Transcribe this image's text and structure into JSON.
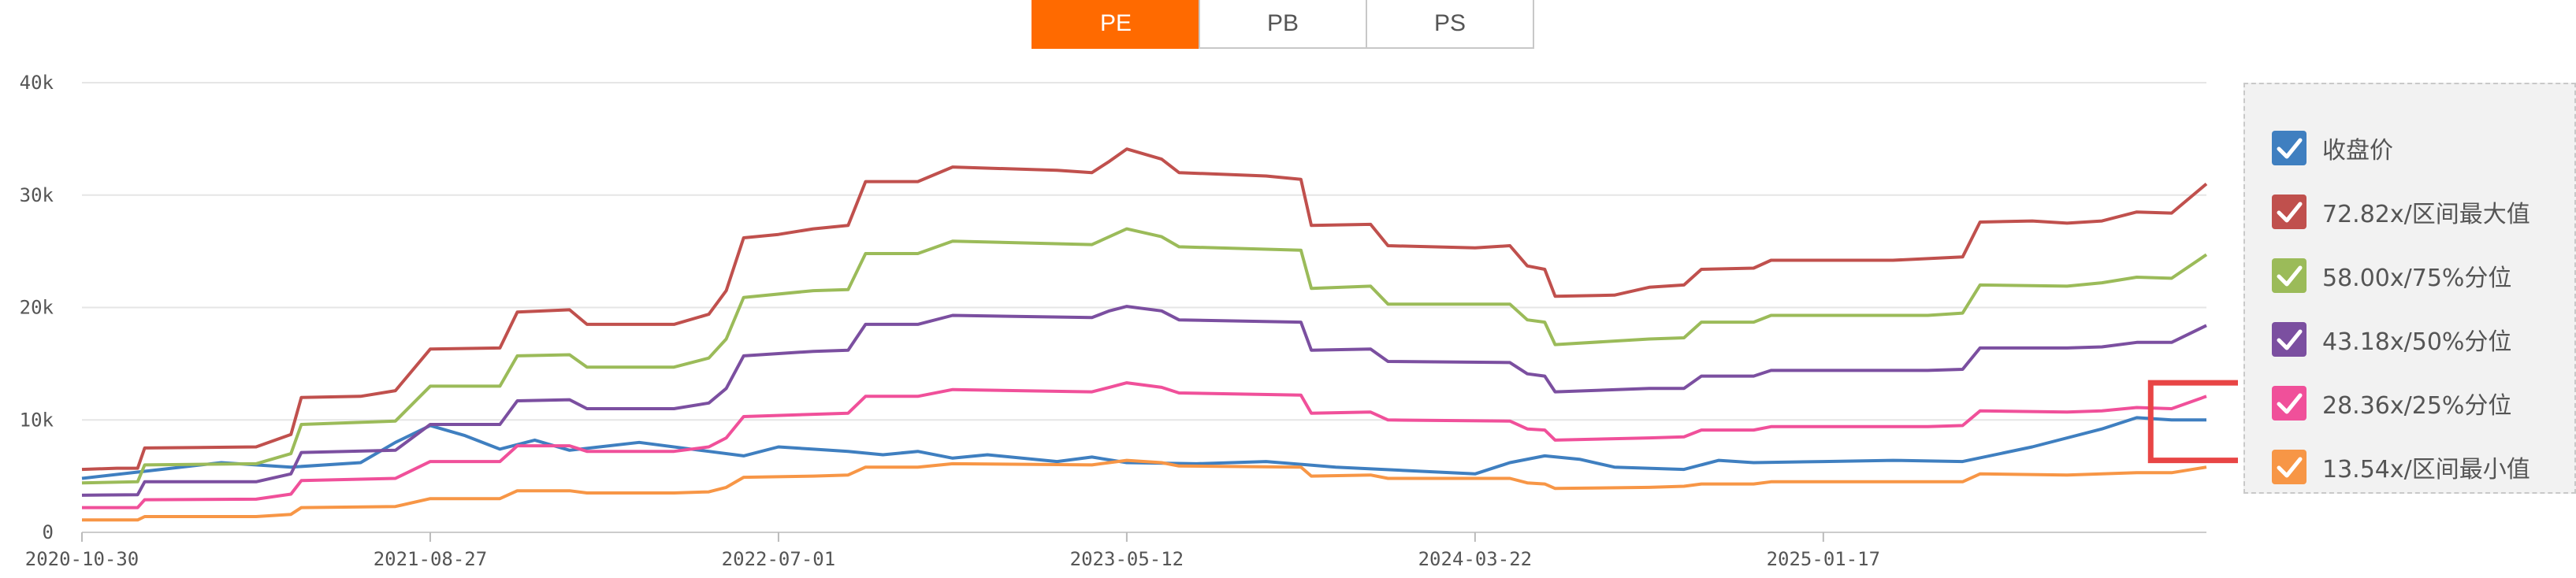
{
  "tabs": [
    {
      "label": "PE",
      "active": true
    },
    {
      "label": "PB",
      "active": false
    },
    {
      "label": "PS",
      "active": false
    }
  ],
  "legend": [
    {
      "label": "收盘价",
      "color": "#3f7fc0"
    },
    {
      "label": "72.82x/区间最大值",
      "color": "#c0504d"
    },
    {
      "label": "58.00x/75%分位",
      "color": "#9bbb59"
    },
    {
      "label": "43.18x/50%分位",
      "color": "#7b4fa0"
    },
    {
      "label": "28.36x/25%分位",
      "color": "#f0509a"
    },
    {
      "label": "13.54x/区间最小值",
      "color": "#f79646"
    }
  ],
  "highlight_color": "#e84545",
  "chart_data": {
    "type": "line",
    "x_ticks": [
      "2020-10-30",
      "2021-08-27",
      "2022-07-01",
      "2023-05-12",
      "2024-03-22",
      "2025-01-17"
    ],
    "y_ticks": [
      "0",
      "10k",
      "20k",
      "30k",
      "40k"
    ],
    "ylim": [
      0,
      40000
    ],
    "xlim_months": [
      0,
      61
    ],
    "x_tick_months": [
      0,
      10,
      20,
      30,
      40,
      50
    ],
    "grid": true,
    "legend_position": "right",
    "series": [
      {
        "name": "收盘价",
        "color": "#3f7fc0",
        "points": [
          [
            0,
            4800
          ],
          [
            2,
            5500
          ],
          [
            4,
            6200
          ],
          [
            6,
            5800
          ],
          [
            8,
            6200
          ],
          [
            9,
            8000
          ],
          [
            10,
            9500
          ],
          [
            11,
            8600
          ],
          [
            12,
            7400
          ],
          [
            13,
            8200
          ],
          [
            14,
            7300
          ],
          [
            16,
            8000
          ],
          [
            18,
            7200
          ],
          [
            19,
            6800
          ],
          [
            20,
            7600
          ],
          [
            21,
            7400
          ],
          [
            22,
            7200
          ],
          [
            23,
            6900
          ],
          [
            24,
            7200
          ],
          [
            25,
            6600
          ],
          [
            26,
            6900
          ],
          [
            28,
            6300
          ],
          [
            29,
            6700
          ],
          [
            30,
            6200
          ],
          [
            32,
            6100
          ],
          [
            34,
            6300
          ],
          [
            36,
            5800
          ],
          [
            38,
            5500
          ],
          [
            40,
            5200
          ],
          [
            41,
            6200
          ],
          [
            42,
            6800
          ],
          [
            43,
            6500
          ],
          [
            44,
            5800
          ],
          [
            46,
            5600
          ],
          [
            47,
            6400
          ],
          [
            48,
            6200
          ],
          [
            50,
            6300
          ],
          [
            52,
            6400
          ],
          [
            54,
            6300
          ],
          [
            56,
            7600
          ],
          [
            58,
            9200
          ],
          [
            59,
            10200
          ],
          [
            60,
            10000
          ],
          [
            61,
            10000
          ]
        ]
      },
      {
        "name": "72.82x/区间最大值",
        "color": "#c0504d",
        "points": [
          [
            0,
            5600
          ],
          [
            1,
            5700
          ],
          [
            1.6,
            5700
          ],
          [
            1.8,
            7500
          ],
          [
            5,
            7600
          ],
          [
            6,
            8700
          ],
          [
            6.3,
            12000
          ],
          [
            8,
            12100
          ],
          [
            9,
            12600
          ],
          [
            10,
            16300
          ],
          [
            12,
            16400
          ],
          [
            12.5,
            19600
          ],
          [
            14,
            19800
          ],
          [
            14.5,
            18500
          ],
          [
            17,
            18500
          ],
          [
            18,
            19400
          ],
          [
            18.5,
            21500
          ],
          [
            19,
            26200
          ],
          [
            20,
            26500
          ],
          [
            21,
            27000
          ],
          [
            22,
            27300
          ],
          [
            22.5,
            31200
          ],
          [
            24,
            31200
          ],
          [
            25,
            32500
          ],
          [
            28,
            32200
          ],
          [
            29,
            32000
          ],
          [
            29.5,
            33000
          ],
          [
            30,
            34100
          ],
          [
            31,
            33200
          ],
          [
            31.5,
            32000
          ],
          [
            34,
            31700
          ],
          [
            35,
            31400
          ],
          [
            35.3,
            27300
          ],
          [
            37,
            27400
          ],
          [
            37.5,
            25500
          ],
          [
            40,
            25300
          ],
          [
            41,
            25500
          ],
          [
            41.5,
            23700
          ],
          [
            42,
            23400
          ],
          [
            42.3,
            21000
          ],
          [
            44,
            21100
          ],
          [
            45,
            21800
          ],
          [
            46,
            22000
          ],
          [
            46.5,
            23400
          ],
          [
            48,
            23500
          ],
          [
            48.5,
            24200
          ],
          [
            52,
            24200
          ],
          [
            54,
            24500
          ],
          [
            54.5,
            27600
          ],
          [
            56,
            27700
          ],
          [
            57,
            27500
          ],
          [
            58,
            27700
          ],
          [
            59,
            28500
          ],
          [
            60,
            28400
          ],
          [
            61,
            31000
          ]
        ]
      },
      {
        "name": "58.00x/75%分位",
        "color": "#9bbb59",
        "points": [
          [
            0,
            4400
          ],
          [
            1.6,
            4500
          ],
          [
            1.8,
            6000
          ],
          [
            5,
            6100
          ],
          [
            6,
            7000
          ],
          [
            6.3,
            9600
          ],
          [
            9,
            9900
          ],
          [
            10,
            13000
          ],
          [
            12,
            13000
          ],
          [
            12.5,
            15700
          ],
          [
            14,
            15800
          ],
          [
            14.5,
            14700
          ],
          [
            17,
            14700
          ],
          [
            18,
            15500
          ],
          [
            18.5,
            17200
          ],
          [
            19,
            20900
          ],
          [
            21,
            21500
          ],
          [
            22,
            21600
          ],
          [
            22.5,
            24800
          ],
          [
            24,
            24800
          ],
          [
            25,
            25900
          ],
          [
            29,
            25600
          ],
          [
            29.5,
            26300
          ],
          [
            30,
            27000
          ],
          [
            31,
            26300
          ],
          [
            31.5,
            25400
          ],
          [
            35,
            25100
          ],
          [
            35.3,
            21700
          ],
          [
            37,
            21900
          ],
          [
            37.5,
            20300
          ],
          [
            41,
            20300
          ],
          [
            41.5,
            18900
          ],
          [
            42,
            18700
          ],
          [
            42.3,
            16700
          ],
          [
            45,
            17200
          ],
          [
            46,
            17300
          ],
          [
            46.5,
            18700
          ],
          [
            48,
            18700
          ],
          [
            48.5,
            19300
          ],
          [
            53,
            19300
          ],
          [
            54,
            19500
          ],
          [
            54.5,
            22000
          ],
          [
            57,
            21900
          ],
          [
            58,
            22200
          ],
          [
            59,
            22700
          ],
          [
            60,
            22600
          ],
          [
            61,
            24700
          ]
        ]
      },
      {
        "name": "43.18x/50%分位",
        "color": "#7b4fa0",
        "points": [
          [
            0,
            3300
          ],
          [
            1.6,
            3350
          ],
          [
            1.8,
            4500
          ],
          [
            5,
            4500
          ],
          [
            6,
            5200
          ],
          [
            6.3,
            7100
          ],
          [
            9,
            7300
          ],
          [
            10,
            9600
          ],
          [
            12,
            9600
          ],
          [
            12.5,
            11700
          ],
          [
            14,
            11800
          ],
          [
            14.5,
            11000
          ],
          [
            17,
            11000
          ],
          [
            18,
            11500
          ],
          [
            18.5,
            12800
          ],
          [
            19,
            15700
          ],
          [
            21,
            16100
          ],
          [
            22,
            16200
          ],
          [
            22.5,
            18500
          ],
          [
            24,
            18500
          ],
          [
            25,
            19300
          ],
          [
            29,
            19100
          ],
          [
            29.5,
            19700
          ],
          [
            30,
            20100
          ],
          [
            31,
            19700
          ],
          [
            31.5,
            18900
          ],
          [
            35,
            18700
          ],
          [
            35.3,
            16200
          ],
          [
            37,
            16300
          ],
          [
            37.5,
            15200
          ],
          [
            41,
            15100
          ],
          [
            41.5,
            14100
          ],
          [
            42,
            13900
          ],
          [
            42.3,
            12500
          ],
          [
            45,
            12800
          ],
          [
            46,
            12800
          ],
          [
            46.5,
            13900
          ],
          [
            48,
            13900
          ],
          [
            48.5,
            14400
          ],
          [
            53,
            14400
          ],
          [
            54,
            14500
          ],
          [
            54.5,
            16400
          ],
          [
            57,
            16400
          ],
          [
            58,
            16500
          ],
          [
            59,
            16900
          ],
          [
            60,
            16900
          ],
          [
            61,
            18400
          ]
        ]
      },
      {
        "name": "28.36x/25%分位",
        "color": "#f0509a",
        "points": [
          [
            0,
            2200
          ],
          [
            1.6,
            2200
          ],
          [
            1.8,
            2900
          ],
          [
            5,
            2950
          ],
          [
            6,
            3400
          ],
          [
            6.3,
            4600
          ],
          [
            9,
            4800
          ],
          [
            10,
            6300
          ],
          [
            12,
            6300
          ],
          [
            12.5,
            7700
          ],
          [
            14,
            7700
          ],
          [
            14.5,
            7200
          ],
          [
            17,
            7200
          ],
          [
            18,
            7600
          ],
          [
            18.5,
            8400
          ],
          [
            19,
            10300
          ],
          [
            21,
            10500
          ],
          [
            22,
            10600
          ],
          [
            22.5,
            12100
          ],
          [
            24,
            12100
          ],
          [
            25,
            12700
          ],
          [
            29,
            12500
          ],
          [
            29.5,
            12900
          ],
          [
            30,
            13300
          ],
          [
            31,
            12900
          ],
          [
            31.5,
            12400
          ],
          [
            35,
            12200
          ],
          [
            35.3,
            10600
          ],
          [
            37,
            10700
          ],
          [
            37.5,
            10000
          ],
          [
            41,
            9900
          ],
          [
            41.5,
            9200
          ],
          [
            42,
            9100
          ],
          [
            42.3,
            8200
          ],
          [
            45,
            8400
          ],
          [
            46,
            8500
          ],
          [
            46.5,
            9100
          ],
          [
            48,
            9100
          ],
          [
            48.5,
            9400
          ],
          [
            53,
            9400
          ],
          [
            54,
            9500
          ],
          [
            54.5,
            10800
          ],
          [
            57,
            10700
          ],
          [
            58,
            10800
          ],
          [
            59,
            11100
          ],
          [
            60,
            11000
          ],
          [
            61,
            12100
          ]
        ]
      },
      {
        "name": "13.54x/区间最小值",
        "color": "#f79646",
        "points": [
          [
            0,
            1100
          ],
          [
            1.6,
            1100
          ],
          [
            1.8,
            1400
          ],
          [
            5,
            1400
          ],
          [
            6,
            1600
          ],
          [
            6.3,
            2200
          ],
          [
            9,
            2300
          ],
          [
            10,
            3000
          ],
          [
            12,
            3000
          ],
          [
            12.5,
            3700
          ],
          [
            14,
            3700
          ],
          [
            14.5,
            3500
          ],
          [
            17,
            3500
          ],
          [
            18,
            3600
          ],
          [
            18.5,
            4000
          ],
          [
            19,
            4900
          ],
          [
            21,
            5000
          ],
          [
            22,
            5100
          ],
          [
            22.5,
            5800
          ],
          [
            24,
            5800
          ],
          [
            25,
            6100
          ],
          [
            29,
            6000
          ],
          [
            29.5,
            6200
          ],
          [
            30,
            6400
          ],
          [
            31,
            6200
          ],
          [
            31.5,
            5900
          ],
          [
            35,
            5800
          ],
          [
            35.3,
            5000
          ],
          [
            37,
            5100
          ],
          [
            37.5,
            4800
          ],
          [
            41,
            4800
          ],
          [
            41.5,
            4400
          ],
          [
            42,
            4300
          ],
          [
            42.3,
            3900
          ],
          [
            45,
            4000
          ],
          [
            46,
            4100
          ],
          [
            46.5,
            4300
          ],
          [
            48,
            4300
          ],
          [
            48.5,
            4500
          ],
          [
            53,
            4500
          ],
          [
            54,
            4500
          ],
          [
            54.5,
            5200
          ],
          [
            57,
            5100
          ],
          [
            58,
            5200
          ],
          [
            59,
            5300
          ],
          [
            60,
            5300
          ],
          [
            61,
            5800
          ]
        ]
      }
    ],
    "highlight_box": {
      "x_from": 59.4,
      "x_to": 62.2,
      "y_from": 6400,
      "y_to": 13300
    }
  }
}
